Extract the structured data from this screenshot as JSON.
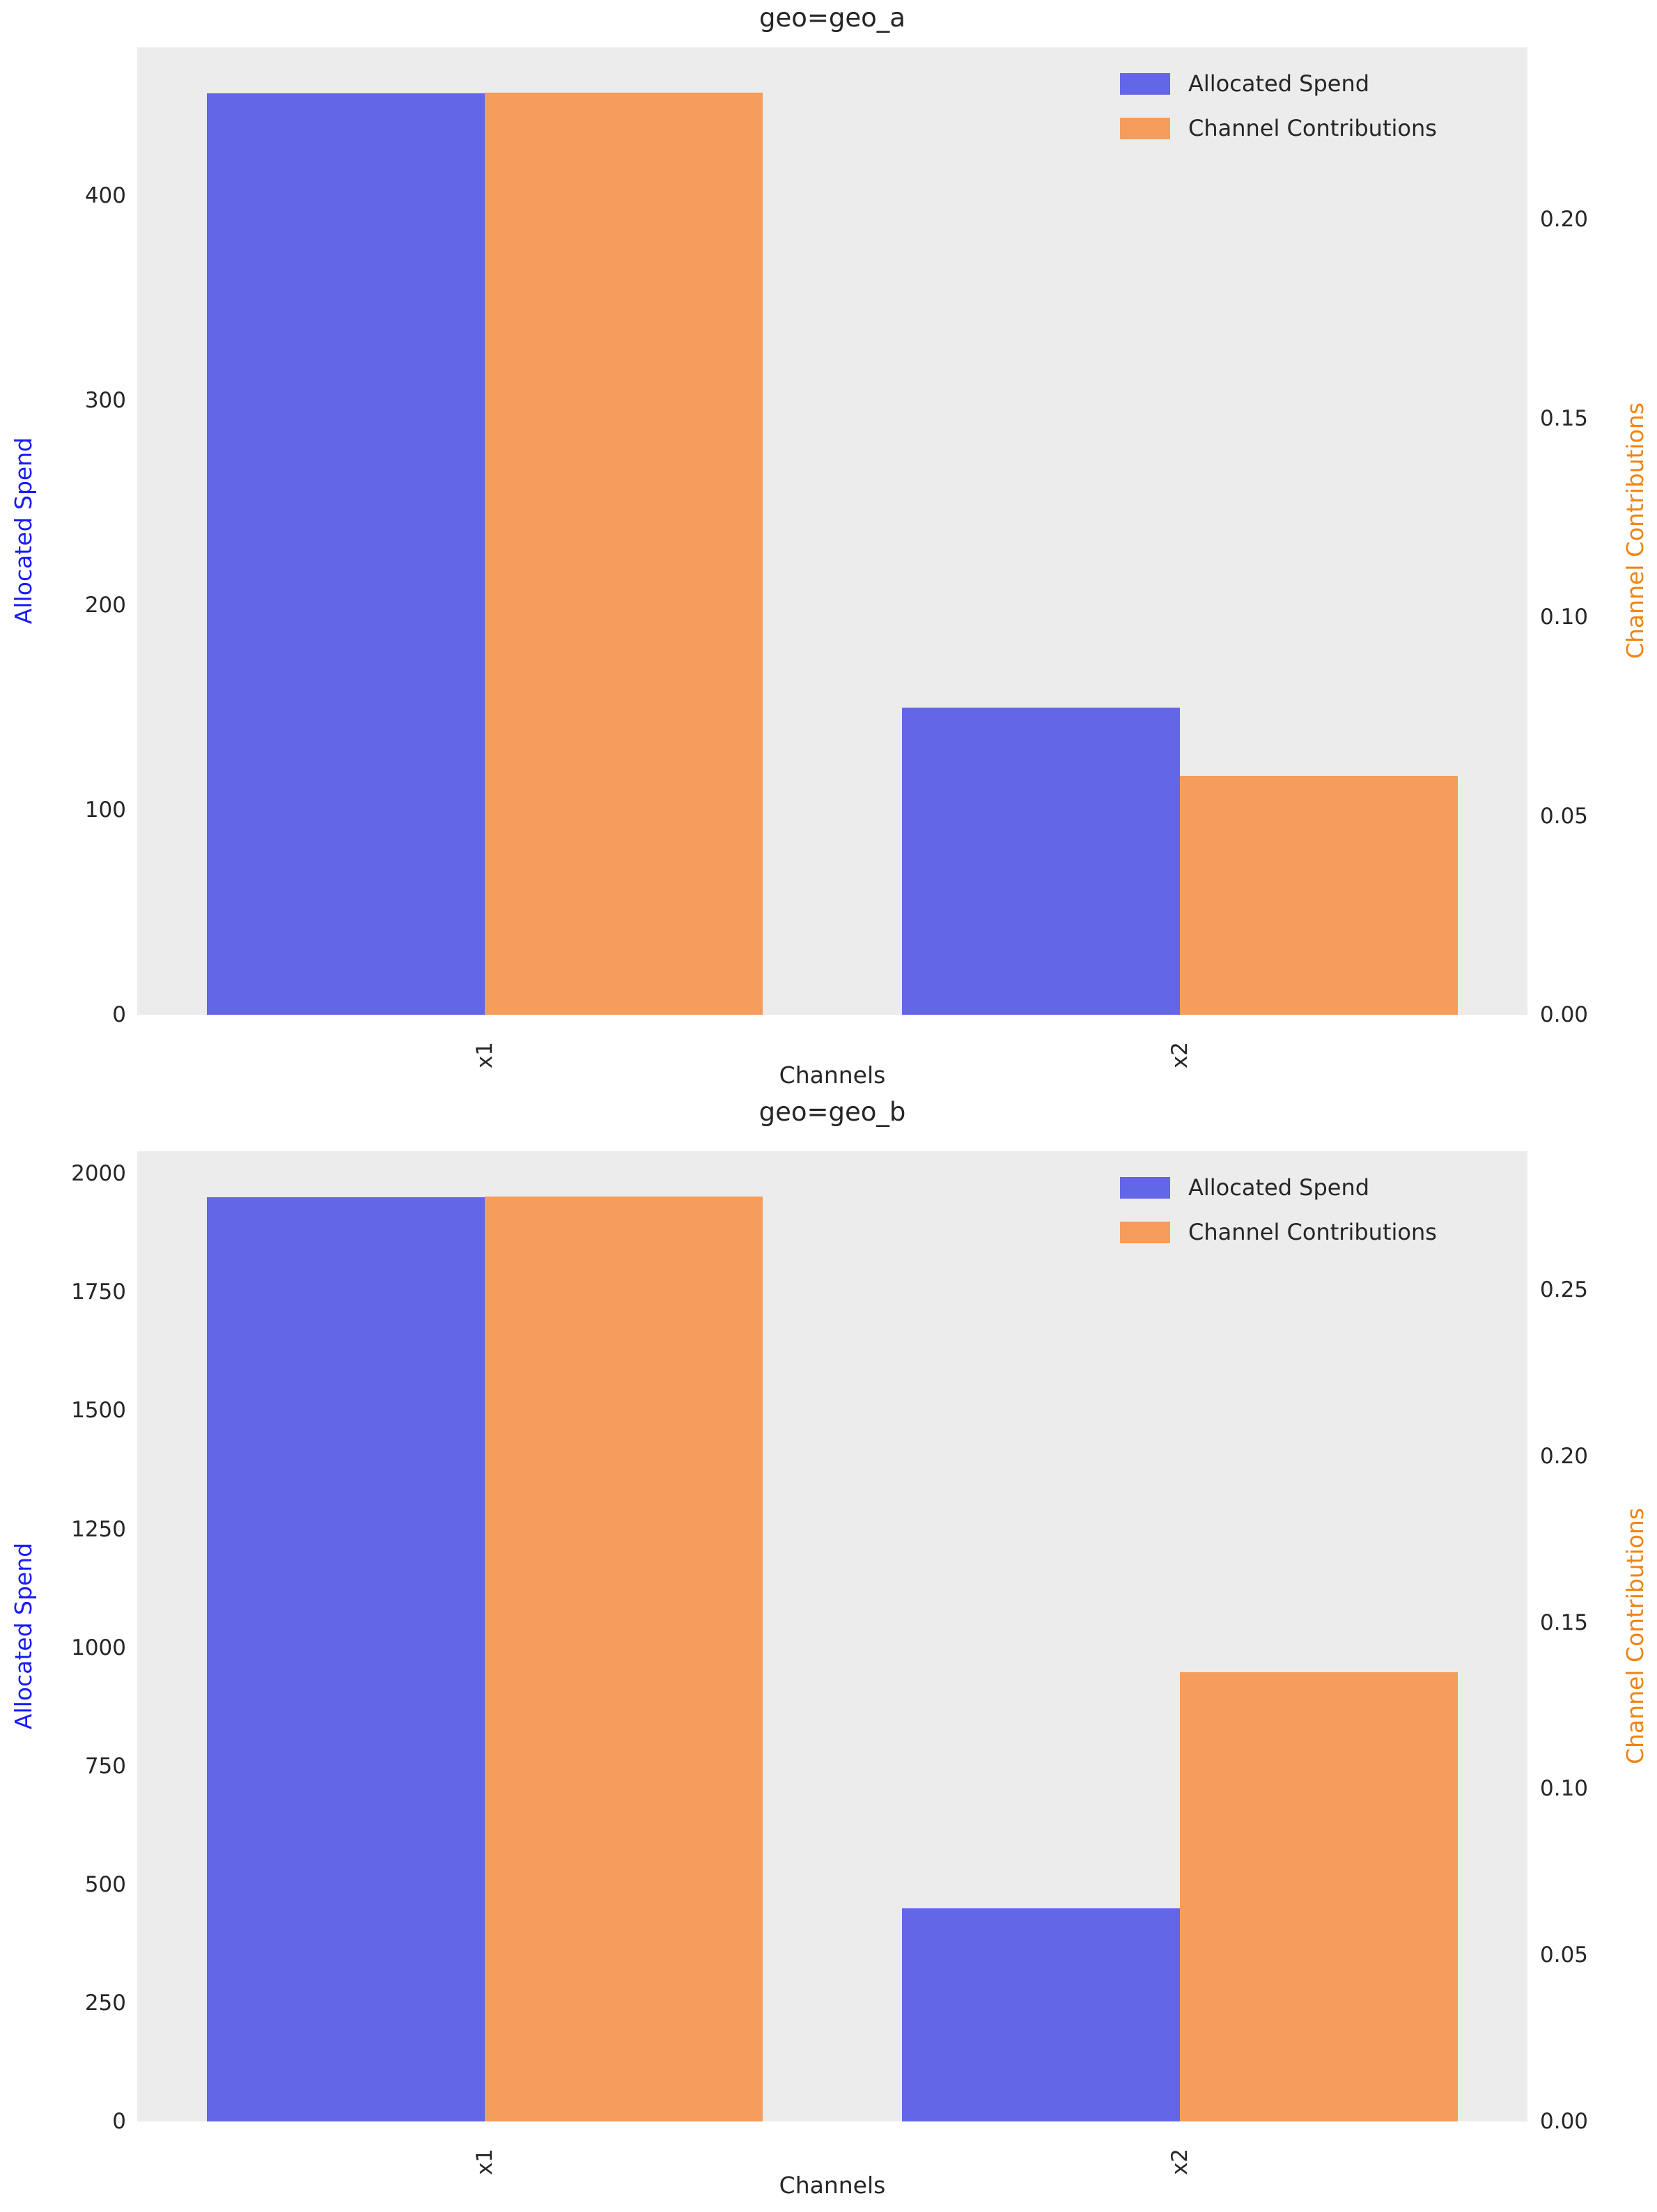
{
  "style": {
    "figure_bg": "#ffffff",
    "axes_bg": "#ececec",
    "tick_color": "#262626",
    "title_color": "#262626",
    "left_axis_label_color": "#1a1aff",
    "right_axis_label_color": "#f28411",
    "spend_bar_color": "#6366e7",
    "contribution_bar_color": "#f49d5c"
  },
  "chart_data": [
    {
      "type": "bar",
      "title": "geo=geo_a",
      "xlabel": "Channels",
      "categories": [
        "x1",
        "x2"
      ],
      "grid": false,
      "legend": {
        "position": "upper right"
      },
      "axes": {
        "left": {
          "label": "Allocated Spend",
          "ticks": [
            "0",
            "100",
            "200",
            "300",
            "400"
          ],
          "tick_values": [
            0,
            100,
            200,
            300,
            400
          ],
          "ylim": [
            0,
            472.5
          ]
        },
        "right": {
          "label": "Channel Contributions",
          "ticks": [
            "0.00",
            "0.05",
            "0.10",
            "0.15",
            "0.20"
          ],
          "tick_values": [
            0,
            0.05,
            0.1,
            0.15,
            0.2
          ],
          "ylim": [
            0,
            0.2433
          ]
        }
      },
      "series": [
        {
          "name": "Allocated Spend",
          "axis": "left",
          "color": "#6366e7",
          "values": [
            450,
            150
          ]
        },
        {
          "name": "Channel Contributions",
          "axis": "right",
          "color": "#f49d5c",
          "values": [
            0.232,
            0.06
          ]
        }
      ]
    },
    {
      "type": "bar",
      "title": "geo=geo_b",
      "xlabel": "Channels",
      "categories": [
        "x1",
        "x2"
      ],
      "grid": false,
      "legend": {
        "position": "upper right"
      },
      "axes": {
        "left": {
          "label": "Allocated Spend",
          "ticks": [
            "0",
            "250",
            "500",
            "750",
            "1000",
            "1250",
            "1500",
            "1750",
            "2000"
          ],
          "tick_values": [
            0,
            250,
            500,
            750,
            1000,
            1250,
            1500,
            1750,
            2000
          ],
          "ylim": [
            0,
            2047.5
          ]
        },
        "right": {
          "label": "Channel Contributions",
          "ticks": [
            "0.00",
            "0.05",
            "0.10",
            "0.15",
            "0.20",
            "0.25"
          ],
          "tick_values": [
            0,
            0.05,
            0.1,
            0.15,
            0.2,
            0.25
          ],
          "ylim": [
            0,
            0.2917
          ]
        }
      },
      "series": [
        {
          "name": "Allocated Spend",
          "axis": "left",
          "color": "#6366e7",
          "values": [
            1950,
            450
          ]
        },
        {
          "name": "Channel Contributions",
          "axis": "right",
          "color": "#f49d5c",
          "values": [
            0.278,
            0.135
          ]
        }
      ]
    }
  ]
}
